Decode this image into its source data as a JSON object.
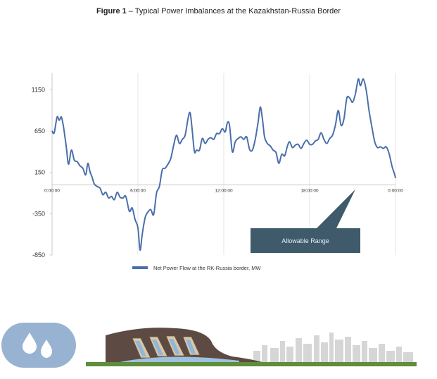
{
  "figure": {
    "label": "Figure 1",
    "separator": " – ",
    "title": "Typical Power Imbalances at the Kazakhstan-Russia Border"
  },
  "chart_data": {
    "type": "line",
    "title": "Figure 1 – Typical Power Imbalances at the Kazakhstan-Russia Border",
    "xlabel": "",
    "ylabel": "",
    "x_unit": "hours",
    "xlim": [
      0,
      24
    ],
    "ylim": [
      -850,
      1350
    ],
    "y_ticks": [
      1150,
      650,
      150,
      -350,
      -850
    ],
    "x_ticks": [
      {
        "value": 0,
        "label": "0:00:00"
      },
      {
        "value": 6,
        "label": "6:00:00"
      },
      {
        "value": 12,
        "label": "12:00:00"
      },
      {
        "value": 18,
        "label": "18:00:00"
      },
      {
        "value": 24,
        "label": "0:00:00"
      }
    ],
    "grid": "vertical",
    "legend_position": "bottom-center",
    "series": [
      {
        "name": "Net Power Flow at the RK-Russia border, MW",
        "color": "#4a6faa",
        "points": [
          [
            0.0,
            650
          ],
          [
            0.15,
            630
          ],
          [
            0.35,
            820
          ],
          [
            0.5,
            780
          ],
          [
            0.65,
            820
          ],
          [
            0.8,
            700
          ],
          [
            1.0,
            450
          ],
          [
            1.15,
            250
          ],
          [
            1.35,
            420
          ],
          [
            1.55,
            300
          ],
          [
            1.75,
            280
          ],
          [
            1.95,
            230
          ],
          [
            2.15,
            200
          ],
          [
            2.35,
            120
          ],
          [
            2.5,
            260
          ],
          [
            2.65,
            160
          ],
          [
            2.8,
            90
          ],
          [
            2.95,
            10
          ],
          [
            3.15,
            -20
          ],
          [
            3.35,
            -40
          ],
          [
            3.55,
            -120
          ],
          [
            3.75,
            -90
          ],
          [
            3.95,
            -160
          ],
          [
            4.15,
            -140
          ],
          [
            4.35,
            -180
          ],
          [
            4.55,
            -90
          ],
          [
            4.75,
            -150
          ],
          [
            4.95,
            -160
          ],
          [
            5.15,
            -140
          ],
          [
            5.4,
            -320
          ],
          [
            5.6,
            -280
          ],
          [
            5.8,
            -420
          ],
          [
            6.0,
            -520
          ],
          [
            6.15,
            -790
          ],
          [
            6.3,
            -600
          ],
          [
            6.5,
            -400
          ],
          [
            6.7,
            -330
          ],
          [
            6.9,
            -300
          ],
          [
            7.1,
            -360
          ],
          [
            7.3,
            -100
          ],
          [
            7.5,
            -20
          ],
          [
            7.7,
            180
          ],
          [
            7.9,
            200
          ],
          [
            8.1,
            250
          ],
          [
            8.3,
            320
          ],
          [
            8.5,
            480
          ],
          [
            8.7,
            600
          ],
          [
            8.9,
            500
          ],
          [
            9.1,
            550
          ],
          [
            9.3,
            600
          ],
          [
            9.5,
            800
          ],
          [
            9.65,
            870
          ],
          [
            9.8,
            650
          ],
          [
            9.95,
            400
          ],
          [
            10.1,
            420
          ],
          [
            10.3,
            420
          ],
          [
            10.5,
            560
          ],
          [
            10.7,
            500
          ],
          [
            10.9,
            550
          ],
          [
            11.1,
            570
          ],
          [
            11.3,
            550
          ],
          [
            11.5,
            620
          ],
          [
            11.7,
            620
          ],
          [
            11.9,
            680
          ],
          [
            12.1,
            640
          ],
          [
            12.25,
            750
          ],
          [
            12.4,
            720
          ],
          [
            12.6,
            400
          ],
          [
            12.8,
            520
          ],
          [
            13.0,
            560
          ],
          [
            13.2,
            580
          ],
          [
            13.4,
            550
          ],
          [
            13.6,
            580
          ],
          [
            13.8,
            430
          ],
          [
            14.0,
            420
          ],
          [
            14.2,
            550
          ],
          [
            14.4,
            760
          ],
          [
            14.55,
            940
          ],
          [
            14.7,
            800
          ],
          [
            14.85,
            580
          ],
          [
            15.05,
            500
          ],
          [
            15.25,
            470
          ],
          [
            15.45,
            420
          ],
          [
            15.65,
            390
          ],
          [
            15.85,
            260
          ],
          [
            16.05,
            370
          ],
          [
            16.25,
            350
          ],
          [
            16.45,
            470
          ],
          [
            16.6,
            520
          ],
          [
            16.8,
            450
          ],
          [
            17.0,
            480
          ],
          [
            17.2,
            490
          ],
          [
            17.4,
            440
          ],
          [
            17.6,
            500
          ],
          [
            17.8,
            540
          ],
          [
            18.0,
            490
          ],
          [
            18.2,
            490
          ],
          [
            18.4,
            530
          ],
          [
            18.6,
            550
          ],
          [
            18.8,
            630
          ],
          [
            19.0,
            550
          ],
          [
            19.2,
            500
          ],
          [
            19.4,
            560
          ],
          [
            19.6,
            600
          ],
          [
            19.8,
            720
          ],
          [
            20.0,
            900
          ],
          [
            20.2,
            720
          ],
          [
            20.4,
            800
          ],
          [
            20.6,
            1050
          ],
          [
            20.8,
            1050
          ],
          [
            21.0,
            1000
          ],
          [
            21.2,
            1100
          ],
          [
            21.4,
            1280
          ],
          [
            21.55,
            1200
          ],
          [
            21.75,
            1280
          ],
          [
            21.95,
            1150
          ],
          [
            22.15,
            900
          ],
          [
            22.35,
            700
          ],
          [
            22.55,
            520
          ],
          [
            22.75,
            450
          ],
          [
            22.95,
            460
          ],
          [
            23.15,
            440
          ],
          [
            23.35,
            460
          ],
          [
            23.55,
            380
          ],
          [
            23.75,
            230
          ],
          [
            23.95,
            120
          ],
          [
            24.0,
            80
          ]
        ]
      }
    ],
    "annotations": [
      {
        "text": "Allowable Range",
        "arrow_to": [
          21.2,
          30
        ]
      }
    ]
  },
  "colors": {
    "line": "#4a6faa",
    "callout": "#3e5a6b",
    "axis": "#c8c8c8",
    "grid": "#e4e4e4",
    "drop_badge": "#98b3d2",
    "hill": "#5d4a42",
    "ground": "#5f8d3a",
    "water": "#9ec0e0",
    "skyline": "#cfcfcf"
  },
  "icons": {
    "water_badge": "water-drops-icon",
    "hydro_plant": "hydro-dam-illustration",
    "skyline": "city-skyline-illustration"
  }
}
